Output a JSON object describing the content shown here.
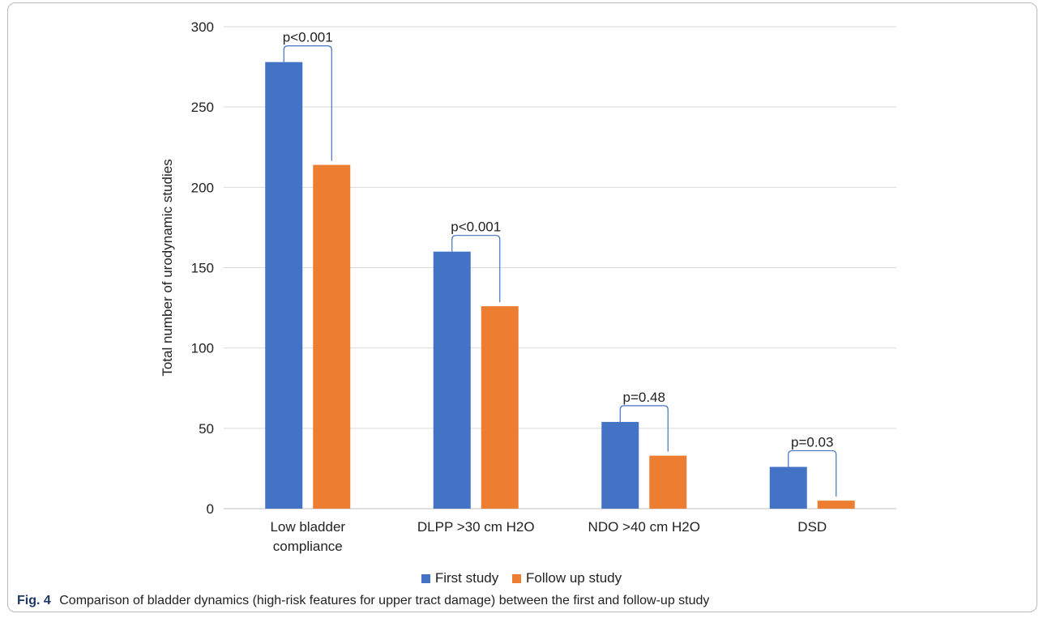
{
  "chart_data": {
    "type": "bar",
    "categories": [
      "Low bladder compliance",
      "DLPP >30 cm H2O",
      "NDO >40 cm H2O",
      "DSD"
    ],
    "category_lines": [
      [
        "Low bladder",
        "compliance"
      ],
      [
        "DLPP >30 cm H2O"
      ],
      [
        "NDO >40 cm H2O"
      ],
      [
        "DSD"
      ]
    ],
    "series": [
      {
        "name": "First study",
        "color": "#4472c4",
        "values": [
          278,
          160,
          54,
          26
        ]
      },
      {
        "name": "Follow up study",
        "color": "#ed7d31",
        "values": [
          214,
          126,
          33,
          5
        ]
      }
    ],
    "annotations": [
      "p<0.001",
      "p<0.001",
      "p=0.48",
      "p=0.03"
    ],
    "ylabel": "Total number of  urodynamic studies",
    "xlabel": "",
    "ylim": [
      0,
      300
    ],
    "yticks": [
      0,
      50,
      100,
      150,
      200,
      250,
      300
    ],
    "grid": true,
    "legend_position": "bottom"
  },
  "caption": {
    "label": "Fig. 4",
    "text": "Comparison of bladder dynamics (high-risk features for upper tract damage) between the first and follow-up study"
  }
}
